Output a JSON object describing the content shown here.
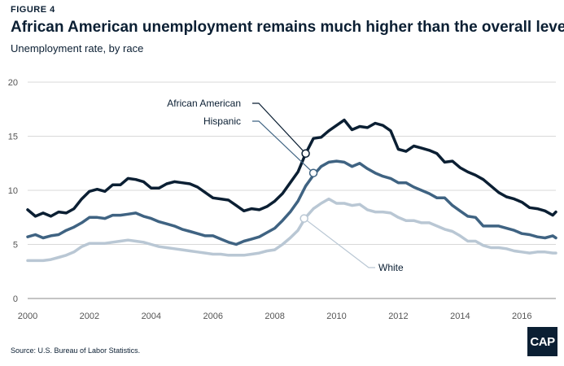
{
  "header": {
    "figure_label": "FIGURE 4",
    "title": "African American unemployment remains much higher than the overall level",
    "subtitle": "Unemployment rate, by race"
  },
  "footer": {
    "source": "Source: U.S. Bureau of Labor Statistics.",
    "logo_text": "CAP"
  },
  "colors": {
    "african_american": "#0b1f33",
    "hispanic": "#3f6382",
    "white": "#b9c7d4",
    "grid": "#d9d9d9"
  },
  "chart_data": {
    "type": "line",
    "title": "African American unemployment remains much higher than the overall level",
    "subtitle": "Unemployment rate, by race",
    "xlabel": "",
    "ylabel": "",
    "xlim": [
      2000,
      2017.1
    ],
    "ylim": [
      0,
      20
    ],
    "xticks": [
      2000,
      2002,
      2004,
      2006,
      2008,
      2010,
      2012,
      2014,
      2016
    ],
    "yticks": [
      0,
      5,
      10,
      15,
      20
    ],
    "grid": true,
    "legend": "direct-labels",
    "series": [
      {
        "name": "African American",
        "color": "#0b1f33",
        "points": [
          [
            2000.0,
            8.2
          ],
          [
            2000.25,
            7.6
          ],
          [
            2000.5,
            7.9
          ],
          [
            2000.75,
            7.6
          ],
          [
            2001.0,
            8.0
          ],
          [
            2001.25,
            7.9
          ],
          [
            2001.5,
            8.3
          ],
          [
            2001.75,
            9.2
          ],
          [
            2002.0,
            9.9
          ],
          [
            2002.25,
            10.1
          ],
          [
            2002.5,
            9.9
          ],
          [
            2002.75,
            10.5
          ],
          [
            2003.0,
            10.5
          ],
          [
            2003.25,
            11.1
          ],
          [
            2003.5,
            11.0
          ],
          [
            2003.75,
            10.8
          ],
          [
            2004.0,
            10.2
          ],
          [
            2004.25,
            10.2
          ],
          [
            2004.5,
            10.6
          ],
          [
            2004.75,
            10.8
          ],
          [
            2005.0,
            10.7
          ],
          [
            2005.25,
            10.6
          ],
          [
            2005.5,
            10.3
          ],
          [
            2005.75,
            9.8
          ],
          [
            2006.0,
            9.3
          ],
          [
            2006.25,
            9.2
          ],
          [
            2006.5,
            9.1
          ],
          [
            2006.75,
            8.6
          ],
          [
            2007.0,
            8.1
          ],
          [
            2007.25,
            8.3
          ],
          [
            2007.5,
            8.2
          ],
          [
            2007.75,
            8.5
          ],
          [
            2008.0,
            9.0
          ],
          [
            2008.25,
            9.7
          ],
          [
            2008.5,
            10.7
          ],
          [
            2008.75,
            11.7
          ],
          [
            2009.0,
            13.4
          ],
          [
            2009.25,
            14.8
          ],
          [
            2009.5,
            14.9
          ],
          [
            2009.75,
            15.5
          ],
          [
            2010.0,
            16.0
          ],
          [
            2010.25,
            16.5
          ],
          [
            2010.5,
            15.6
          ],
          [
            2010.75,
            15.9
          ],
          [
            2011.0,
            15.8
          ],
          [
            2011.25,
            16.2
          ],
          [
            2011.5,
            16.0
          ],
          [
            2011.75,
            15.5
          ],
          [
            2012.0,
            13.8
          ],
          [
            2012.25,
            13.6
          ],
          [
            2012.5,
            14.1
          ],
          [
            2012.75,
            13.9
          ],
          [
            2013.0,
            13.7
          ],
          [
            2013.25,
            13.4
          ],
          [
            2013.5,
            12.6
          ],
          [
            2013.75,
            12.7
          ],
          [
            2014.0,
            12.1
          ],
          [
            2014.25,
            11.7
          ],
          [
            2014.5,
            11.4
          ],
          [
            2014.75,
            11.0
          ],
          [
            2015.0,
            10.4
          ],
          [
            2015.25,
            9.8
          ],
          [
            2015.5,
            9.4
          ],
          [
            2015.75,
            9.2
          ],
          [
            2016.0,
            8.9
          ],
          [
            2016.25,
            8.4
          ],
          [
            2016.5,
            8.3
          ],
          [
            2016.75,
            8.1
          ],
          [
            2017.0,
            7.7
          ],
          [
            2017.1,
            8.0
          ]
        ]
      },
      {
        "name": "Hispanic",
        "color": "#3f6382",
        "points": [
          [
            2000.0,
            5.7
          ],
          [
            2000.25,
            5.9
          ],
          [
            2000.5,
            5.6
          ],
          [
            2000.75,
            5.8
          ],
          [
            2001.0,
            5.9
          ],
          [
            2001.25,
            6.3
          ],
          [
            2001.5,
            6.6
          ],
          [
            2001.75,
            7.0
          ],
          [
            2002.0,
            7.5
          ],
          [
            2002.25,
            7.5
          ],
          [
            2002.5,
            7.4
          ],
          [
            2002.75,
            7.7
          ],
          [
            2003.0,
            7.7
          ],
          [
            2003.25,
            7.8
          ],
          [
            2003.5,
            7.9
          ],
          [
            2003.75,
            7.6
          ],
          [
            2004.0,
            7.4
          ],
          [
            2004.25,
            7.1
          ],
          [
            2004.5,
            6.9
          ],
          [
            2004.75,
            6.7
          ],
          [
            2005.0,
            6.4
          ],
          [
            2005.25,
            6.2
          ],
          [
            2005.5,
            6.0
          ],
          [
            2005.75,
            5.8
          ],
          [
            2006.0,
            5.8
          ],
          [
            2006.25,
            5.5
          ],
          [
            2006.5,
            5.2
          ],
          [
            2006.75,
            5.0
          ],
          [
            2007.0,
            5.3
          ],
          [
            2007.25,
            5.5
          ],
          [
            2007.5,
            5.7
          ],
          [
            2007.75,
            6.1
          ],
          [
            2008.0,
            6.5
          ],
          [
            2008.25,
            7.2
          ],
          [
            2008.5,
            8.0
          ],
          [
            2008.75,
            9.0
          ],
          [
            2009.0,
            10.4
          ],
          [
            2009.25,
            11.4
          ],
          [
            2009.5,
            12.2
          ],
          [
            2009.75,
            12.6
          ],
          [
            2010.0,
            12.7
          ],
          [
            2010.25,
            12.6
          ],
          [
            2010.5,
            12.2
          ],
          [
            2010.75,
            12.5
          ],
          [
            2011.0,
            12.0
          ],
          [
            2011.25,
            11.6
          ],
          [
            2011.5,
            11.3
          ],
          [
            2011.75,
            11.1
          ],
          [
            2012.0,
            10.7
          ],
          [
            2012.25,
            10.7
          ],
          [
            2012.5,
            10.3
          ],
          [
            2012.75,
            10.0
          ],
          [
            2013.0,
            9.7
          ],
          [
            2013.25,
            9.3
          ],
          [
            2013.5,
            9.3
          ],
          [
            2013.75,
            8.6
          ],
          [
            2014.0,
            8.1
          ],
          [
            2014.25,
            7.6
          ],
          [
            2014.5,
            7.5
          ],
          [
            2014.75,
            6.7
          ],
          [
            2015.0,
            6.7
          ],
          [
            2015.25,
            6.7
          ],
          [
            2015.5,
            6.5
          ],
          [
            2015.75,
            6.3
          ],
          [
            2016.0,
            6.0
          ],
          [
            2016.25,
            5.9
          ],
          [
            2016.5,
            5.7
          ],
          [
            2016.75,
            5.6
          ],
          [
            2017.0,
            5.8
          ],
          [
            2017.1,
            5.6
          ]
        ]
      },
      {
        "name": "White",
        "color": "#b9c7d4",
        "points": [
          [
            2000.0,
            3.5
          ],
          [
            2000.25,
            3.5
          ],
          [
            2000.5,
            3.5
          ],
          [
            2000.75,
            3.6
          ],
          [
            2001.0,
            3.8
          ],
          [
            2001.25,
            4.0
          ],
          [
            2001.5,
            4.3
          ],
          [
            2001.75,
            4.8
          ],
          [
            2002.0,
            5.1
          ],
          [
            2002.25,
            5.1
          ],
          [
            2002.5,
            5.1
          ],
          [
            2002.75,
            5.2
          ],
          [
            2003.0,
            5.3
          ],
          [
            2003.25,
            5.4
          ],
          [
            2003.5,
            5.3
          ],
          [
            2003.75,
            5.2
          ],
          [
            2004.0,
            5.0
          ],
          [
            2004.25,
            4.8
          ],
          [
            2004.5,
            4.7
          ],
          [
            2004.75,
            4.6
          ],
          [
            2005.0,
            4.5
          ],
          [
            2005.25,
            4.4
          ],
          [
            2005.5,
            4.3
          ],
          [
            2005.75,
            4.2
          ],
          [
            2006.0,
            4.1
          ],
          [
            2006.25,
            4.1
          ],
          [
            2006.5,
            4.0
          ],
          [
            2006.75,
            4.0
          ],
          [
            2007.0,
            4.0
          ],
          [
            2007.25,
            4.1
          ],
          [
            2007.5,
            4.2
          ],
          [
            2007.75,
            4.4
          ],
          [
            2008.0,
            4.5
          ],
          [
            2008.25,
            5.0
          ],
          [
            2008.5,
            5.6
          ],
          [
            2008.75,
            6.3
          ],
          [
            2009.0,
            7.5
          ],
          [
            2009.25,
            8.3
          ],
          [
            2009.5,
            8.8
          ],
          [
            2009.75,
            9.2
          ],
          [
            2010.0,
            8.8
          ],
          [
            2010.25,
            8.8
          ],
          [
            2010.5,
            8.6
          ],
          [
            2010.75,
            8.7
          ],
          [
            2011.0,
            8.2
          ],
          [
            2011.25,
            8.0
          ],
          [
            2011.5,
            8.0
          ],
          [
            2011.75,
            7.9
          ],
          [
            2012.0,
            7.5
          ],
          [
            2012.25,
            7.2
          ],
          [
            2012.5,
            7.2
          ],
          [
            2012.75,
            7.0
          ],
          [
            2013.0,
            7.0
          ],
          [
            2013.25,
            6.7
          ],
          [
            2013.5,
            6.4
          ],
          [
            2013.75,
            6.2
          ],
          [
            2014.0,
            5.8
          ],
          [
            2014.25,
            5.3
          ],
          [
            2014.5,
            5.3
          ],
          [
            2014.75,
            4.9
          ],
          [
            2015.0,
            4.7
          ],
          [
            2015.25,
            4.7
          ],
          [
            2015.5,
            4.6
          ],
          [
            2015.75,
            4.4
          ],
          [
            2016.0,
            4.3
          ],
          [
            2016.25,
            4.2
          ],
          [
            2016.5,
            4.3
          ],
          [
            2016.75,
            4.3
          ],
          [
            2017.0,
            4.2
          ],
          [
            2017.1,
            4.2
          ]
        ]
      }
    ],
    "annotations": [
      {
        "series": "African American",
        "text": "African American",
        "x": 2009.0,
        "y": 13.4
      },
      {
        "series": "Hispanic",
        "text": "Hispanic",
        "x": 2009.25,
        "y": 11.6
      },
      {
        "series": "White",
        "text": "White",
        "x": 2008.95,
        "y": 7.4
      }
    ]
  }
}
